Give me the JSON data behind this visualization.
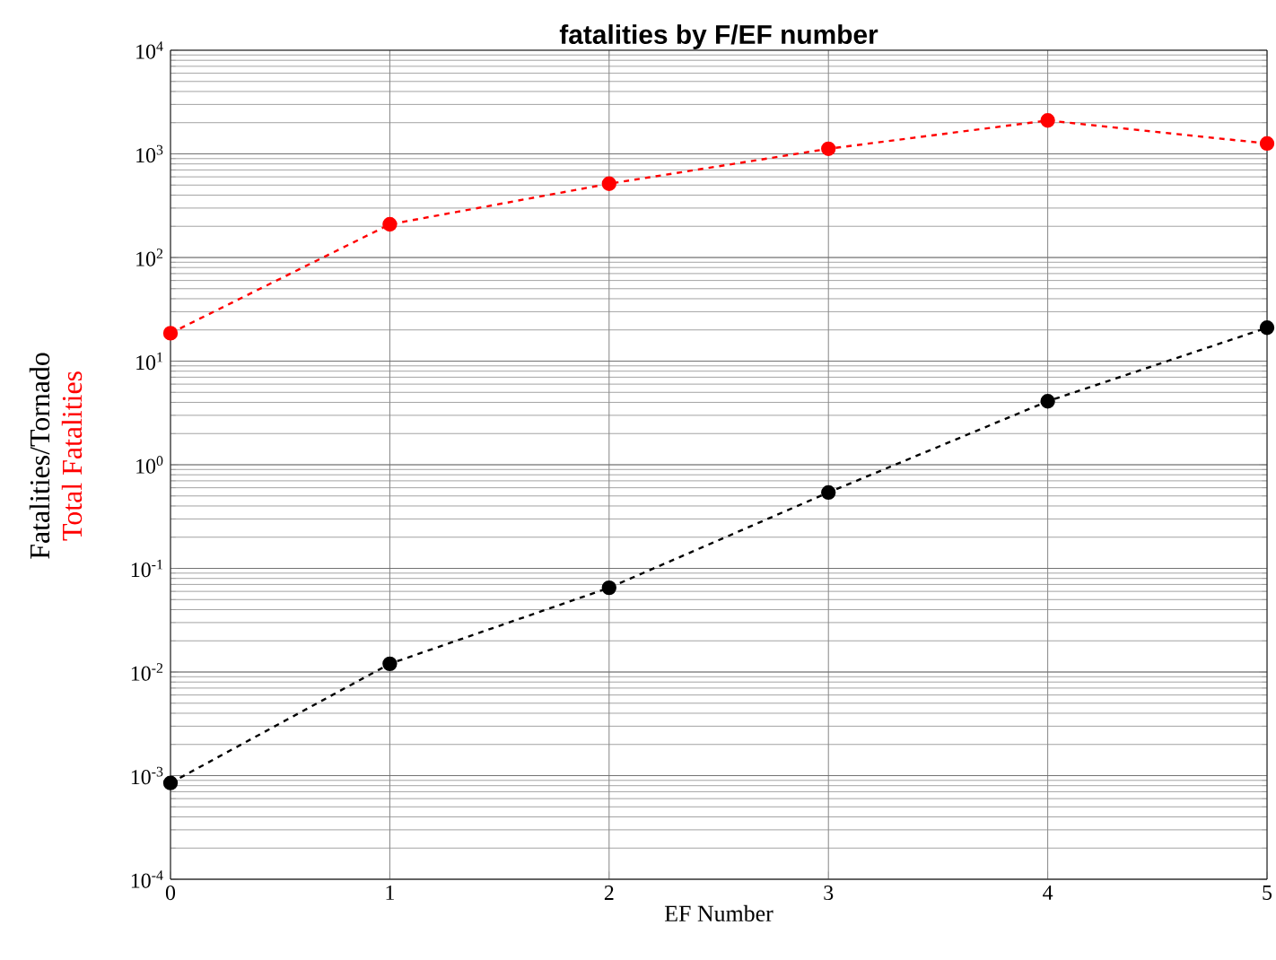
{
  "chart_data": {
    "type": "line",
    "title": "fatalities by F/EF number",
    "xlabel": "EF Number",
    "x": [
      0,
      1,
      2,
      3,
      4,
      5
    ],
    "series": [
      {
        "name": "Fatalities/Tornado",
        "color": "#000000",
        "values": [
          0.00085,
          0.012,
          0.065,
          0.54,
          4.1,
          21
        ]
      },
      {
        "name": "Total Fatalities",
        "color": "#ff0000",
        "values": [
          18.6,
          209,
          515,
          1120,
          2100,
          1260
        ]
      }
    ],
    "xlim": [
      0,
      5
    ],
    "xticks": [
      0,
      1,
      2,
      3,
      4,
      5
    ],
    "ylim": [
      0.0001,
      10000
    ],
    "yticks": [
      {
        "value": 0.0001,
        "label": "10$^{-4}$"
      },
      {
        "value": 0.001,
        "label": "10$^{-3}$"
      },
      {
        "value": 0.01,
        "label": "10$^{-2}$"
      },
      {
        "value": 0.1,
        "label": "10$^{-1}$"
      },
      {
        "value": 1,
        "label": "10$^{0}$"
      },
      {
        "value": 10,
        "label": "10$^{1}$"
      },
      {
        "value": 100,
        "label": "10$^{2}$"
      },
      {
        "value": 1000,
        "label": "10$^{3}$"
      },
      {
        "value": 10000,
        "label": "10$^{4}$"
      }
    ],
    "log": "y",
    "grid": true,
    "marker": "circle",
    "line_style": "dashed",
    "legend": false
  }
}
